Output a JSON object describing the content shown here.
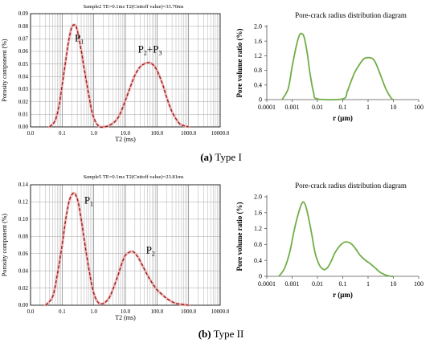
{
  "figure": {
    "caption_a": {
      "label": "(a)",
      "text": "Type I"
    },
    "caption_b": {
      "label": "(b)",
      "text": "Type II"
    }
  },
  "chart_data": [
    {
      "id": "a-t2",
      "type": "line",
      "title": "Sample2  TE=0.1ms  T2(Cnttoff value)=33.70ms",
      "xlabel": "T2 (ms)",
      "ylabel": "Porosity component (%)",
      "xscale": "log",
      "xlim": [
        0.01,
        10000
      ],
      "ylim": [
        0,
        0.09
      ],
      "xticks": [
        0.01,
        0.1,
        1,
        10,
        100,
        1000,
        10000
      ],
      "xtick_labels": [
        "0.0",
        "0.1",
        "1.0",
        "10.0",
        "100.0",
        "1000.0",
        "10000.0"
      ],
      "yticks": [
        0,
        0.01,
        0.02,
        0.03,
        0.04,
        0.05,
        0.06,
        0.07,
        0.08,
        0.09
      ],
      "ytick_labels": [
        "0.00",
        "0.01",
        "0.02",
        "0.03",
        "0.04",
        "0.05",
        "0.06",
        "0.07",
        "0.08",
        "0.09"
      ],
      "grid": true,
      "peaks": [
        {
          "label": "P",
          "sub": "1",
          "x": 0.25,
          "y": 0.068
        },
        {
          "label": "P",
          "sub": "2",
          "mid": "+P",
          "sub2": "3",
          "x": 25,
          "y": 0.059
        }
      ],
      "series": [
        {
          "style": "dashed-red-over-pink",
          "color": "#8B1A1A",
          "x": [
            0.04,
            0.06,
            0.08,
            0.1,
            0.13,
            0.16,
            0.2,
            0.25,
            0.3,
            0.4,
            0.5,
            0.7,
            0.9,
            1.2,
            1.6,
            2,
            3,
            5,
            7,
            10,
            15,
            20,
            30,
            50,
            70,
            100,
            150,
            200,
            300,
            500,
            700,
            1000
          ],
          "y": [
            0.0,
            0.005,
            0.017,
            0.033,
            0.053,
            0.068,
            0.079,
            0.081,
            0.077,
            0.061,
            0.046,
            0.025,
            0.011,
            0.003,
            0.0,
            0.0,
            0.001,
            0.005,
            0.011,
            0.021,
            0.033,
            0.041,
            0.048,
            0.051,
            0.05,
            0.045,
            0.034,
            0.024,
            0.012,
            0.003,
            0.001,
            0.0
          ]
        }
      ]
    },
    {
      "id": "a-pore",
      "type": "line",
      "title": "Pore-crack radius distribution diagram",
      "xlabel": "r (μm)",
      "ylabel": "Pore volume ratio (%)",
      "xscale": "log",
      "xlim": [
        0.0001,
        100
      ],
      "ylim": [
        0,
        2.0
      ],
      "xticks": [
        0.0001,
        0.001,
        0.01,
        0.1,
        1,
        10,
        100
      ],
      "xtick_labels": [
        "0.0001",
        "0.001",
        "0.01",
        "0.1",
        "1",
        "10",
        "100"
      ],
      "yticks": [
        0,
        0.4,
        0.8,
        1.2,
        1.6,
        2.0
      ],
      "ytick_labels": [
        "0",
        "0.4",
        "0.8",
        "1.2",
        "1.6",
        "2.0"
      ],
      "grid": false,
      "series": [
        {
          "color": "#70AD47",
          "x": [
            0.0004,
            0.0007,
            0.001,
            0.0015,
            0.002,
            0.0025,
            0.003,
            0.004,
            0.005,
            0.007,
            0.01,
            0.1,
            0.15,
            0.2,
            0.3,
            0.5,
            0.7,
            1,
            1.5,
            2,
            3,
            5,
            8,
            10
          ],
          "y": [
            0.0,
            0.3,
            0.9,
            1.5,
            1.78,
            1.8,
            1.7,
            1.25,
            0.75,
            0.2,
            0.02,
            0.02,
            0.22,
            0.45,
            0.75,
            1.0,
            1.12,
            1.15,
            1.12,
            1.0,
            0.7,
            0.3,
            0.05,
            0.0
          ]
        }
      ]
    },
    {
      "id": "b-t2",
      "type": "line",
      "title": "Sample5  TE=0.1ms  T2(Cnttoff value)=23.81ms",
      "xlabel": "T2 (ms)",
      "ylabel": "Porosity component (%)",
      "xscale": "log",
      "xlim": [
        0.01,
        10000
      ],
      "ylim": [
        0,
        0.14
      ],
      "xticks": [
        0.01,
        0.1,
        1,
        10,
        100,
        1000,
        10000
      ],
      "xtick_labels": [
        "0.0",
        "0.1",
        "1.0",
        "10.0",
        "100.0",
        "1000.0",
        "10000.0"
      ],
      "yticks": [
        0,
        0.02,
        0.04,
        0.06,
        0.08,
        0.1,
        0.12,
        0.14
      ],
      "ytick_labels": [
        "0.00",
        "0.02",
        "0.04",
        "0.06",
        "0.08",
        "0.10",
        "0.12",
        "0.14"
      ],
      "grid": true,
      "peaks": [
        {
          "label": "P",
          "sub": "1",
          "x": 0.5,
          "y": 0.118
        },
        {
          "label": "P",
          "sub": "2",
          "x": 45,
          "y": 0.06
        }
      ],
      "series": [
        {
          "style": "dashed-red-over-pink",
          "color": "#8B1A1A",
          "x": [
            0.03,
            0.05,
            0.07,
            0.1,
            0.13,
            0.17,
            0.22,
            0.27,
            0.33,
            0.42,
            0.55,
            0.75,
            1,
            1.4,
            2,
            3,
            4,
            6,
            8,
            10,
            14,
            18,
            25,
            35,
            50,
            70,
            100,
            150,
            200,
            300,
            400,
            600,
            800,
            1000
          ],
          "y": [
            0.0,
            0.01,
            0.035,
            0.07,
            0.1,
            0.122,
            0.13,
            0.128,
            0.118,
            0.095,
            0.066,
            0.036,
            0.014,
            0.003,
            0.002,
            0.008,
            0.018,
            0.036,
            0.05,
            0.058,
            0.062,
            0.062,
            0.056,
            0.046,
            0.035,
            0.026,
            0.018,
            0.012,
            0.008,
            0.004,
            0.002,
            0.001,
            0.0005,
            0.0
          ]
        }
      ]
    },
    {
      "id": "b-pore",
      "type": "line",
      "title": "Pore-crack radius distribution diagram",
      "xlabel": "r (μm)",
      "ylabel": "Pore volume ratio (%)",
      "xscale": "log",
      "xlim": [
        0.0001,
        100
      ],
      "ylim": [
        0,
        2.0
      ],
      "xticks": [
        0.0001,
        0.001,
        0.01,
        0.1,
        1,
        10,
        100
      ],
      "xtick_labels": [
        "0.0001",
        "0.001",
        "0.01",
        "0.1",
        "1",
        "10",
        "100"
      ],
      "yticks": [
        0,
        0.4,
        0.8,
        1.2,
        1.6,
        2.0
      ],
      "ytick_labels": [
        "0",
        "0.4",
        "0.8",
        "1.2",
        "1.6",
        "2.0"
      ],
      "grid": false,
      "series": [
        {
          "color": "#70AD47",
          "x": [
            0.0003,
            0.0005,
            0.0008,
            0.0012,
            0.0018,
            0.0025,
            0.0032,
            0.0042,
            0.006,
            0.008,
            0.012,
            0.018,
            0.025,
            0.035,
            0.05,
            0.08,
            0.12,
            0.18,
            0.25,
            0.35,
            0.5,
            0.8,
            1.2,
            2,
            3,
            5,
            8,
            10
          ],
          "y": [
            0.0,
            0.2,
            0.6,
            1.15,
            1.6,
            1.85,
            1.82,
            1.55,
            1.05,
            0.6,
            0.28,
            0.17,
            0.22,
            0.38,
            0.6,
            0.78,
            0.86,
            0.85,
            0.78,
            0.66,
            0.52,
            0.4,
            0.32,
            0.2,
            0.1,
            0.03,
            0.0,
            0.0
          ]
        }
      ]
    }
  ]
}
